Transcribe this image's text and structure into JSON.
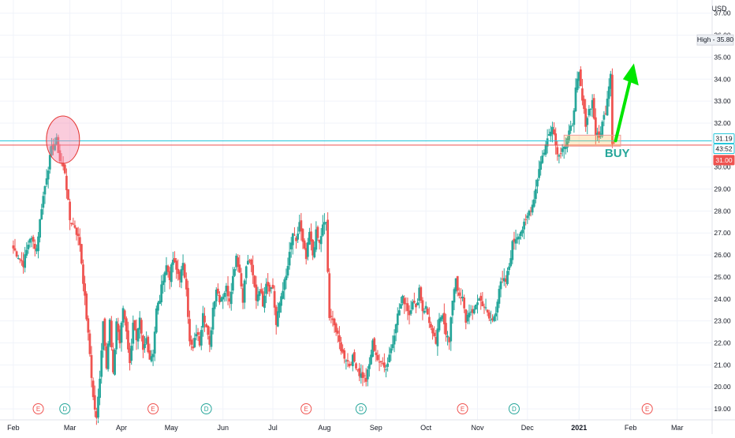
{
  "chart_data": {
    "type": "candlestick",
    "currency": "USD",
    "y_ticks": [
      "37.00",
      "36.00",
      "35.00",
      "34.00",
      "33.00",
      "32.00",
      "31.00",
      "30.00",
      "29.00",
      "28.00",
      "27.00",
      "26.00",
      "25.00",
      "24.00",
      "23.00",
      "22.00",
      "21.00",
      "20.00",
      "19.00"
    ],
    "ylim": [
      18.5,
      37.6
    ],
    "x_labels": [
      {
        "label": "Feb",
        "day": 0,
        "bold": false
      },
      {
        "label": "Mar",
        "day": 34,
        "bold": false
      },
      {
        "label": "Apr",
        "day": 65,
        "bold": false
      },
      {
        "label": "May",
        "day": 95,
        "bold": false
      },
      {
        "label": "Jun",
        "day": 126,
        "bold": false
      },
      {
        "label": "Jul",
        "day": 156,
        "bold": false
      },
      {
        "label": "Aug",
        "day": 187,
        "bold": false
      },
      {
        "label": "Sep",
        "day": 218,
        "bold": false
      },
      {
        "label": "Oct",
        "day": 248,
        "bold": false
      },
      {
        "label": "Nov",
        "day": 279,
        "bold": false
      },
      {
        "label": "Dec",
        "day": 309,
        "bold": false
      },
      {
        "label": "2021",
        "day": 340,
        "bold": true
      },
      {
        "label": "Feb",
        "day": 371,
        "bold": false
      },
      {
        "label": "Mar",
        "day": 399,
        "bold": false
      }
    ],
    "xlim": [
      -8,
      420
    ],
    "events": [
      {
        "kind": "E",
        "day": 15,
        "color": "#ef5350"
      },
      {
        "kind": "D",
        "day": 31,
        "color": "#26a69a"
      },
      {
        "kind": "E",
        "day": 84,
        "color": "#ef5350"
      },
      {
        "kind": "D",
        "day": 116,
        "color": "#26a69a"
      },
      {
        "kind": "E",
        "day": 176,
        "color": "#ef5350"
      },
      {
        "kind": "D",
        "day": 209,
        "color": "#26a69a"
      },
      {
        "kind": "E",
        "day": 270,
        "color": "#ef5350"
      },
      {
        "kind": "D",
        "day": 301,
        "color": "#26a69a"
      },
      {
        "kind": "E",
        "day": 381,
        "color": "#ef5350"
      }
    ],
    "anchors": [
      [
        0,
        26.3
      ],
      [
        6,
        25.6
      ],
      [
        10,
        26.8
      ],
      [
        14,
        26.3
      ],
      [
        17,
        28.2
      ],
      [
        20,
        29.6
      ],
      [
        23,
        30.8
      ],
      [
        26,
        31.2
      ],
      [
        28,
        30.3
      ],
      [
        31,
        29.8
      ],
      [
        34,
        27.6
      ],
      [
        37,
        27.3
      ],
      [
        40,
        26.5
      ],
      [
        43,
        24.0
      ],
      [
        46,
        21.5
      ],
      [
        48,
        19.5
      ],
      [
        50,
        18.5
      ],
      [
        52,
        20.5
      ],
      [
        54,
        23.0
      ],
      [
        56,
        21.0
      ],
      [
        58,
        23.0
      ],
      [
        60,
        20.5
      ],
      [
        62,
        23.0
      ],
      [
        64,
        22.0
      ],
      [
        66,
        23.6
      ],
      [
        68,
        22.6
      ],
      [
        70,
        21.0
      ],
      [
        72,
        23.0
      ],
      [
        74,
        22.0
      ],
      [
        76,
        23.0
      ],
      [
        78,
        21.6
      ],
      [
        80,
        22.2
      ],
      [
        82,
        21.3
      ],
      [
        84,
        21.6
      ],
      [
        86,
        23.5
      ],
      [
        88,
        24.0
      ],
      [
        90,
        25.0
      ],
      [
        92,
        25.5
      ],
      [
        94,
        25.0
      ],
      [
        96,
        25.8
      ],
      [
        98,
        25.3
      ],
      [
        100,
        25.0
      ],
      [
        102,
        25.5
      ],
      [
        104,
        24.6
      ],
      [
        106,
        22.0
      ],
      [
        108,
        21.7
      ],
      [
        110,
        22.5
      ],
      [
        112,
        22.0
      ],
      [
        114,
        23.5
      ],
      [
        116,
        22.7
      ],
      [
        118,
        21.8
      ],
      [
        120,
        23.6
      ],
      [
        122,
        24.5
      ],
      [
        124,
        24.0
      ],
      [
        126,
        24.2
      ],
      [
        128,
        24.5
      ],
      [
        130,
        24.0
      ],
      [
        132,
        25.0
      ],
      [
        134,
        26.0
      ],
      [
        136,
        25.2
      ],
      [
        138,
        24.0
      ],
      [
        140,
        25.5
      ],
      [
        142,
        25.8
      ],
      [
        144,
        25.0
      ],
      [
        146,
        24.0
      ],
      [
        148,
        24.5
      ],
      [
        150,
        23.8
      ],
      [
        152,
        24.8
      ],
      [
        154,
        24.5
      ],
      [
        156,
        24.5
      ],
      [
        158,
        22.8
      ],
      [
        160,
        23.8
      ],
      [
        162,
        24.5
      ],
      [
        164,
        25.0
      ],
      [
        166,
        26.0
      ],
      [
        168,
        27.0
      ],
      [
        170,
        26.5
      ],
      [
        172,
        27.5
      ],
      [
        174,
        26.5
      ],
      [
        176,
        25.8
      ],
      [
        178,
        27.0
      ],
      [
        180,
        26.0
      ],
      [
        182,
        27.0
      ],
      [
        184,
        26.5
      ],
      [
        186,
        27.3
      ],
      [
        188,
        27.5
      ],
      [
        190,
        23.0
      ],
      [
        192,
        23.2
      ],
      [
        194,
        22.5
      ],
      [
        196,
        22.0
      ],
      [
        198,
        21.5
      ],
      [
        200,
        21.3
      ],
      [
        202,
        21.0
      ],
      [
        204,
        21.3
      ],
      [
        206,
        21.0
      ],
      [
        208,
        20.6
      ],
      [
        210,
        20.5
      ],
      [
        212,
        20.3
      ],
      [
        214,
        21.0
      ],
      [
        216,
        22.0
      ],
      [
        218,
        21.5
      ],
      [
        220,
        21.0
      ],
      [
        222,
        21.2
      ],
      [
        224,
        20.8
      ],
      [
        226,
        21.5
      ],
      [
        228,
        22.0
      ],
      [
        230,
        23.0
      ],
      [
        232,
        23.5
      ],
      [
        234,
        24.0
      ],
      [
        236,
        23.8
      ],
      [
        238,
        23.3
      ],
      [
        240,
        24.0
      ],
      [
        242,
        23.5
      ],
      [
        244,
        24.5
      ],
      [
        246,
        23.5
      ],
      [
        248,
        23.6
      ],
      [
        250,
        23.0
      ],
      [
        252,
        22.3
      ],
      [
        254,
        22.0
      ],
      [
        256,
        23.0
      ],
      [
        258,
        23.4
      ],
      [
        260,
        22.5
      ],
      [
        262,
        22.0
      ],
      [
        264,
        24.0
      ],
      [
        266,
        25.0
      ],
      [
        268,
        24.0
      ],
      [
        270,
        24.0
      ],
      [
        272,
        23.0
      ],
      [
        274,
        23.5
      ],
      [
        276,
        23.2
      ],
      [
        278,
        23.8
      ],
      [
        280,
        24.0
      ],
      [
        282,
        23.8
      ],
      [
        284,
        23.5
      ],
      [
        286,
        23.1
      ],
      [
        288,
        23.0
      ],
      [
        290,
        23.5
      ],
      [
        292,
        24.5
      ],
      [
        294,
        24.8
      ],
      [
        296,
        24.8
      ],
      [
        298,
        25.5
      ],
      [
        300,
        26.5
      ],
      [
        302,
        26.8
      ],
      [
        304,
        27.0
      ],
      [
        306,
        27.2
      ],
      [
        308,
        27.5
      ],
      [
        310,
        28.0
      ],
      [
        312,
        28.3
      ],
      [
        314,
        29.0
      ],
      [
        316,
        30.0
      ],
      [
        318,
        30.5
      ],
      [
        320,
        31.0
      ],
      [
        322,
        31.5
      ],
      [
        324,
        32.0
      ],
      [
        326,
        31.0
      ],
      [
        328,
        30.5
      ],
      [
        330,
        31.0
      ],
      [
        332,
        31.0
      ],
      [
        334,
        31.5
      ],
      [
        336,
        32.0
      ],
      [
        338,
        33.5
      ],
      [
        340,
        34.2
      ],
      [
        342,
        33.0
      ],
      [
        344,
        32.0
      ],
      [
        346,
        32.6
      ],
      [
        348,
        33.0
      ],
      [
        350,
        31.5
      ],
      [
        352,
        31.3
      ],
      [
        354,
        32.0
      ],
      [
        356,
        32.6
      ],
      [
        358,
        33.8
      ],
      [
        359,
        34.3
      ],
      [
        360,
        31.2
      ],
      [
        361,
        31.1
      ]
    ],
    "h_lines": [
      {
        "value": 31.19,
        "color": "#26c6da",
        "label": "31.19"
      },
      {
        "value": 31.0,
        "color": "#ef5350",
        "label": "31.00"
      }
    ],
    "high_marker": {
      "text": "High",
      "value": "35.80"
    },
    "countdown": "43:52",
    "annotations": {
      "buy_text": "BUY",
      "circle": {
        "day": 27,
        "value": 31.1
      },
      "zone": {
        "day_from": 331,
        "day_to": 365,
        "low": 30.95,
        "high": 31.45
      },
      "arrow": {
        "day_from": 362,
        "day_to": 373,
        "v_from": 31.2,
        "v_to": 34.5
      }
    },
    "colors": {
      "up": "#26a69a",
      "down": "#ef5350",
      "axis_text": "#131722",
      "grid": "#f0f3fa"
    }
  }
}
